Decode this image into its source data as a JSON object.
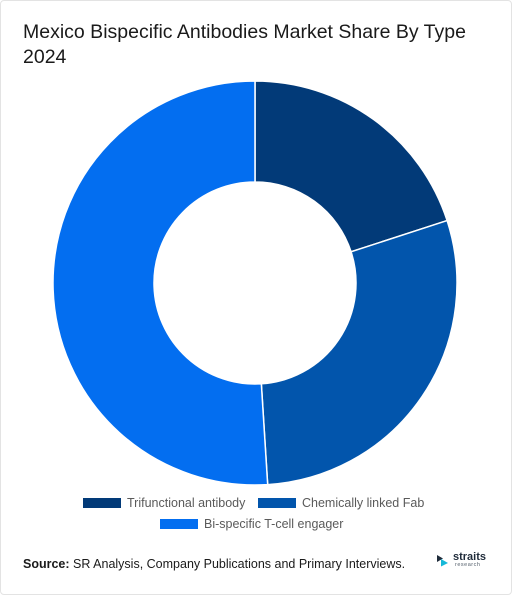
{
  "title": "Mexico Bispecific Antibodies Market Share By Type 2024",
  "chart_data": {
    "type": "pie",
    "donut": true,
    "categories": [
      "Trifunctional antibody",
      "Chemically linked Fab",
      "Bi-specific T-cell engager"
    ],
    "values": [
      20,
      29,
      51
    ],
    "colors": [
      "#023a78",
      "#0255ac",
      "#036ef0"
    ],
    "legend_position": "bottom"
  },
  "source": {
    "label": "Source:",
    "text": " SR Analysis, Company Publications and Primary Interviews."
  },
  "logo": {
    "name": "straits",
    "sub": "research"
  }
}
